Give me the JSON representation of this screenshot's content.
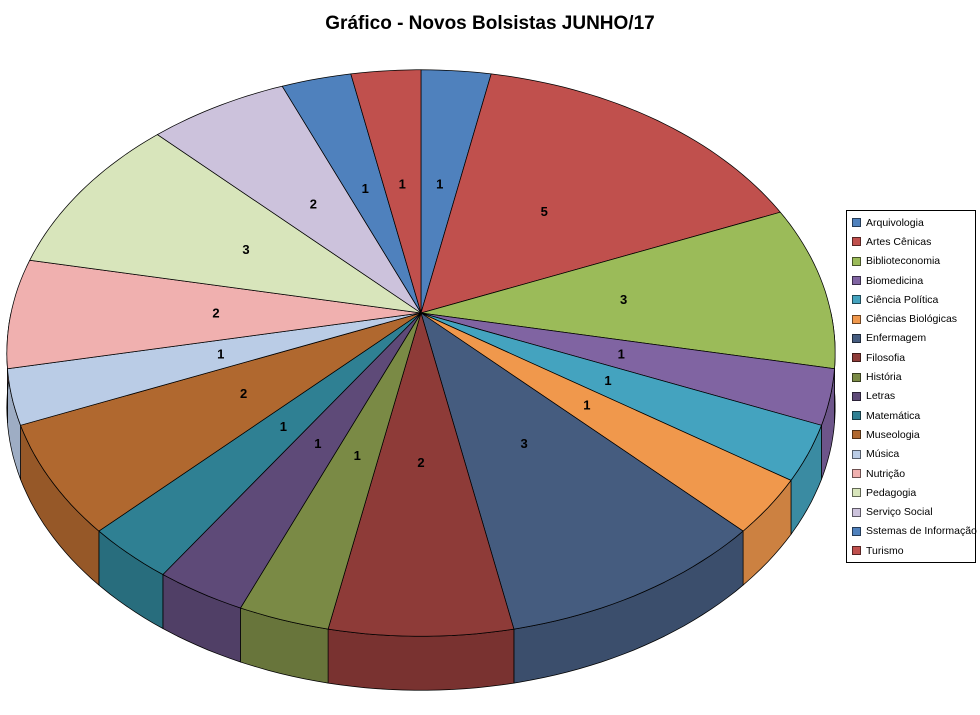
{
  "chart_data": {
    "type": "pie",
    "style": "3d-perspective",
    "title": "Gráfico - Novos Bolsistas JUNHO/17",
    "legend_position": "right",
    "data_labels": "value",
    "total": 32,
    "categories": [
      "Arquivologia",
      "Artes Cênicas",
      "Biblioteconomia",
      "Biomedicina",
      "Ciência Política",
      "Ciências Biológicas",
      "Enfermagem",
      "Filosofia",
      "História",
      "Letras",
      "Matemática",
      "Museologia",
      "Música",
      "Nutrição",
      "Pedagogia",
      "Serviço Social",
      "Sstemas de Informação",
      "Turismo"
    ],
    "values": [
      1,
      5,
      3,
      1,
      1,
      1,
      3,
      2,
      1,
      1,
      1,
      2,
      1,
      2,
      3,
      2,
      1,
      1
    ],
    "colors": [
      "#4F81BD",
      "#C0504D",
      "#9BBB59",
      "#8064A2",
      "#44A3BF",
      "#F0984C",
      "#455C7F",
      "#8E3B38",
      "#7A8A45",
      "#5E4A78",
      "#2F8093",
      "#B0682F",
      "#BACCE6",
      "#F0B0AF",
      "#D8E5BB",
      "#CCC2DC",
      "#4F81BD",
      "#C0504D"
    ]
  },
  "legend": {
    "border_color": "#000000",
    "background": "#FFFFFF"
  },
  "canvas": {
    "background": "#FFFFFF"
  }
}
